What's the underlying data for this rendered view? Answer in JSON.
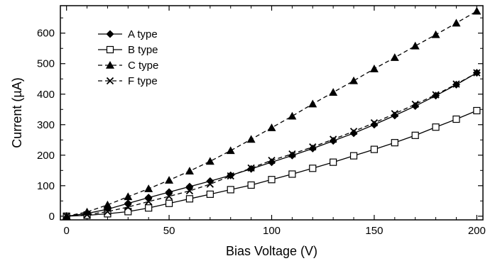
{
  "chart_data": {
    "type": "line",
    "xlabel": "Bias Voltage (V)",
    "ylabel": "Current (µA)",
    "xlim": [
      -3,
      203
    ],
    "ylim": [
      -12,
      690
    ],
    "x_ticks": [
      0,
      50,
      100,
      150,
      200
    ],
    "y_ticks": [
      0,
      100,
      200,
      300,
      400,
      500,
      600
    ],
    "x_tick_labels": [
      "0",
      "50",
      "100",
      "150",
      "200"
    ],
    "y_tick_labels": [
      "0",
      "100",
      "200",
      "300",
      "400",
      "500",
      "600"
    ],
    "grid": false,
    "legend_position": "top-left",
    "series": [
      {
        "name": "A type",
        "marker": "diamond",
        "line": "solid",
        "x": [
          0,
          10,
          20,
          30,
          40,
          50,
          60,
          70,
          80,
          90,
          100,
          110,
          120,
          130,
          140,
          150,
          160,
          170,
          180,
          190,
          200
        ],
        "y": [
          0,
          9,
          23,
          42,
          61,
          79,
          97,
          115,
          134,
          155,
          177,
          199,
          222,
          247,
          272,
          300,
          330,
          361,
          395,
          431,
          470
        ]
      },
      {
        "name": "B type",
        "marker": "open-square",
        "line": "solid",
        "x": [
          0,
          10,
          20,
          30,
          40,
          50,
          60,
          70,
          80,
          90,
          100,
          110,
          120,
          130,
          140,
          150,
          160,
          170,
          180,
          190,
          200
        ],
        "y": [
          0,
          3,
          8,
          15,
          27,
          42,
          57,
          72,
          87,
          102,
          120,
          138,
          157,
          177,
          198,
          219,
          241,
          265,
          292,
          318,
          346
        ]
      },
      {
        "name": "C type",
        "marker": "filled-triangle",
        "line": "dashed",
        "x": [
          0,
          10,
          20,
          30,
          40,
          50,
          60,
          70,
          80,
          90,
          100,
          110,
          120,
          130,
          140,
          150,
          160,
          170,
          180,
          190,
          200
        ],
        "y": [
          0,
          14,
          37,
          64,
          90,
          118,
          148,
          180,
          215,
          252,
          290,
          328,
          368,
          406,
          444,
          483,
          520,
          558,
          595,
          633,
          672
        ]
      },
      {
        "name": "F type",
        "marker": "cross",
        "line": "dashed",
        "x": [
          0,
          10,
          20,
          30,
          40,
          50,
          60,
          70,
          80,
          90,
          100,
          110,
          120,
          130,
          140,
          150,
          160,
          170,
          180,
          190,
          200
        ],
        "y": [
          0,
          5,
          15,
          30,
          48,
          65,
          83,
          105,
          132,
          158,
          183,
          204,
          227,
          252,
          278,
          306,
          336,
          367,
          398,
          433,
          470
        ]
      }
    ]
  }
}
